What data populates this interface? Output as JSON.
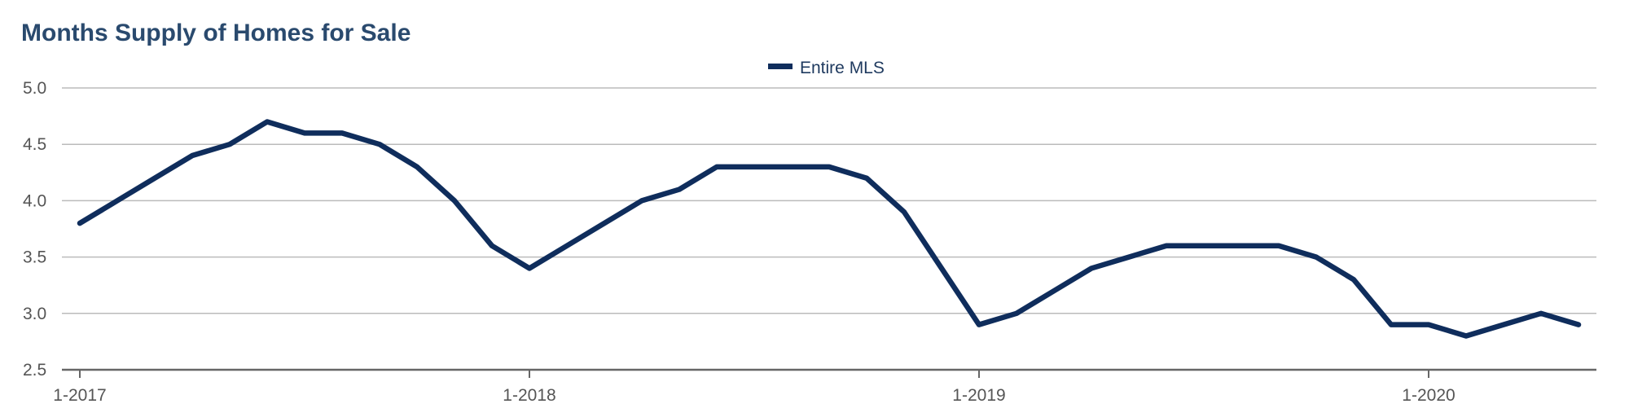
{
  "chart_data": {
    "type": "line",
    "title": "Months Supply of Homes for Sale",
    "xlabel": "",
    "ylabel": "",
    "ylim": [
      2.5,
      5.0
    ],
    "yticks": [
      "5.0",
      "4.5",
      "4.0",
      "3.5",
      "3.0",
      "2.5"
    ],
    "xticks": [
      {
        "label": "1-2017",
        "index": 0
      },
      {
        "label": "1-2018",
        "index": 12
      },
      {
        "label": "1-2019",
        "index": 24
      },
      {
        "label": "1-2020",
        "index": 36
      }
    ],
    "grid": true,
    "legend_position": "top-center",
    "colors": {
      "series": "#0f2d5c",
      "grid": "#bbbbbb",
      "axis": "#666666",
      "title": "#2a4a6e"
    },
    "series": [
      {
        "name": "Entire MLS",
        "values": [
          3.8,
          4.0,
          4.2,
          4.4,
          4.5,
          4.7,
          4.6,
          4.6,
          4.5,
          4.3,
          4.0,
          3.6,
          3.4,
          3.6,
          3.8,
          4.0,
          4.1,
          4.3,
          4.3,
          4.3,
          4.3,
          4.2,
          3.9,
          3.4,
          2.9,
          3.0,
          3.2,
          3.4,
          3.5,
          3.6,
          3.6,
          3.6,
          3.6,
          3.5,
          3.3,
          2.9,
          2.9,
          2.8,
          2.9,
          3.0,
          2.9
        ]
      }
    ]
  }
}
